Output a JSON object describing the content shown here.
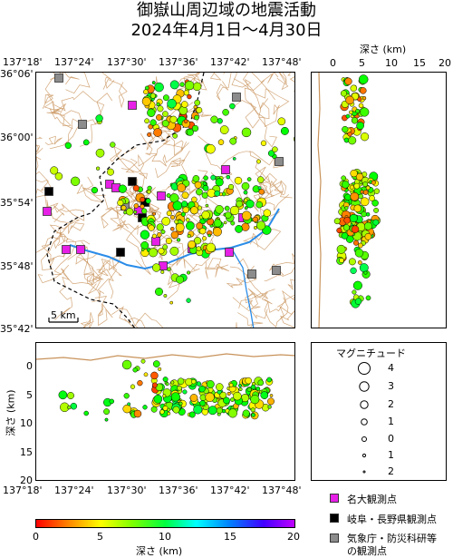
{
  "title": {
    "line1": "御嶽山周辺域の地震活動",
    "line2": "2024年4月1日～4月30日"
  },
  "map": {
    "lon_labels": [
      "137°18'",
      "137°24'",
      "137°30'",
      "137°36'",
      "137°42'",
      "137°48'"
    ],
    "lat_labels": [
      "36°06'",
      "36°00'",
      "35°54'",
      "35°48'",
      "35°42'"
    ],
    "scale_label": "5 km"
  },
  "depth_right": {
    "label": "深さ (km)",
    "ticks": [
      "0",
      "5",
      "10",
      "15",
      "20"
    ]
  },
  "depth_bottom": {
    "ylabel": "深さ (km)",
    "yticks": [
      "0",
      "5",
      "10",
      "15",
      "20"
    ],
    "xticks": [
      "137°18'",
      "137°24'",
      "137°30'",
      "137°36'",
      "137°42'",
      "137°48'"
    ]
  },
  "magnitude_legend": {
    "title": "マグニチュード",
    "items": [
      "4",
      "3",
      "2",
      "1",
      "0",
      "1",
      "2"
    ]
  },
  "station_legend": [
    {
      "label": "名大観測点",
      "color": "#e620e6"
    },
    {
      "label": "岐阜・長野県観測点",
      "color": "#000000"
    },
    {
      "label": "気象庁・防災科研等",
      "label2": "の観測点",
      "color": "#8c8c8c"
    }
  ],
  "colorbar": {
    "ticks": [
      "0",
      "5",
      "10",
      "15",
      "20"
    ],
    "label": "深さ (km)"
  },
  "colors": {
    "contour": "#c8925a",
    "river": "#2a8ce8",
    "boundary": "#000000"
  }
}
